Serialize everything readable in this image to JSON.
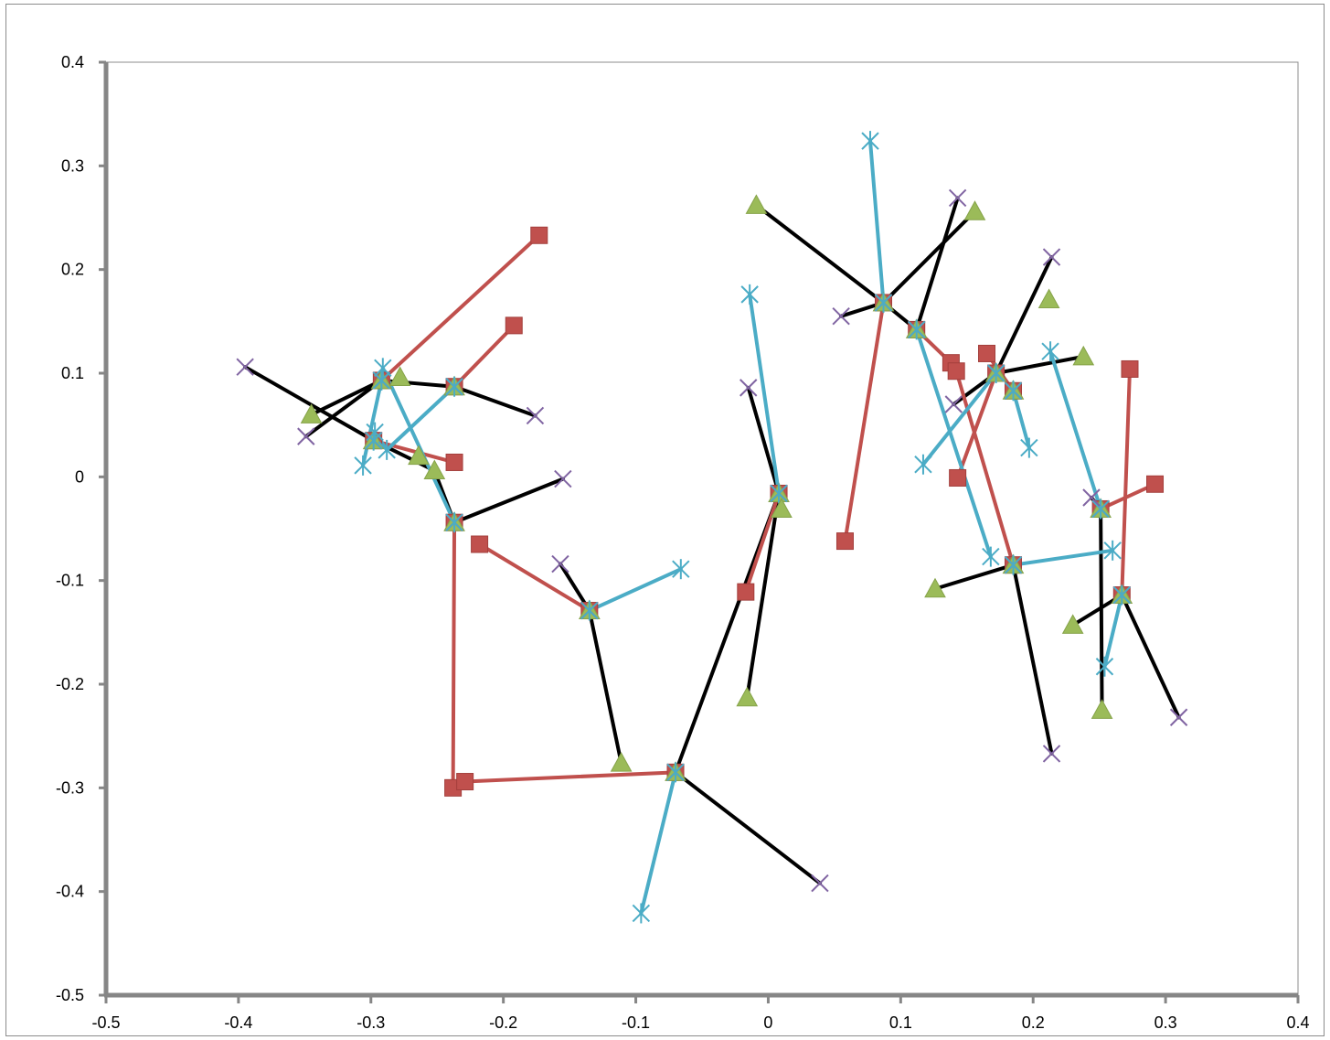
{
  "chart_data": {
    "type": "scatter",
    "title": "",
    "xlabel": "",
    "ylabel": "",
    "xlim": [
      -0.5,
      0.4
    ],
    "ylim": [
      -0.5,
      0.4
    ],
    "xticks": [
      -0.5,
      -0.4,
      -0.3,
      -0.2,
      -0.1,
      0,
      0.1,
      0.2,
      0.3,
      0.4
    ],
    "yticks": [
      0.4,
      0.3,
      0.2,
      0.1,
      0,
      -0.1,
      -0.2,
      -0.3,
      -0.4,
      -0.5
    ],
    "xtick_labels": [
      "-0.5",
      "-0.4",
      "-0.3",
      "-0.2",
      "-0.1",
      "0",
      "0.1",
      "0.2",
      "0.3",
      "0.4"
    ],
    "ytick_labels": [
      "0.4",
      "0.3",
      "0.2",
      "0.1",
      "0",
      "-0.1",
      "-0.2",
      "-0.3",
      "-0.4",
      "-0.5"
    ],
    "grid": false,
    "legend": "none",
    "colors": {
      "axis": "#868686",
      "black_edges": "#000000",
      "red_edges": "#c0504d",
      "blue_edges": "#4bacc6",
      "square_marker": "#c0504d",
      "triangle_marker": "#9bbb59",
      "x_marker": "#8064a2",
      "star_marker": "#4bacc6"
    },
    "hub_points": [
      {
        "x": -0.292,
        "y": 0.093
      },
      {
        "x": -0.237,
        "y": 0.087
      },
      {
        "x": -0.298,
        "y": 0.035
      },
      {
        "x": -0.237,
        "y": -0.044
      },
      {
        "x": -0.135,
        "y": -0.129
      },
      {
        "x": -0.07,
        "y": -0.285
      },
      {
        "x": 0.008,
        "y": -0.016
      },
      {
        "x": 0.087,
        "y": 0.168
      },
      {
        "x": 0.112,
        "y": 0.142
      },
      {
        "x": 0.172,
        "y": 0.1
      },
      {
        "x": 0.185,
        "y": 0.083
      },
      {
        "x": 0.185,
        "y": -0.085
      },
      {
        "x": 0.251,
        "y": -0.031
      },
      {
        "x": 0.267,
        "y": -0.114
      }
    ],
    "series": [
      {
        "marker": "square",
        "color": "#c0504d",
        "points": [
          {
            "x": -0.173,
            "y": 0.233
          },
          {
            "x": -0.192,
            "y": 0.146
          },
          {
            "x": -0.237,
            "y": 0.014
          },
          {
            "x": -0.218,
            "y": -0.065
          },
          {
            "x": -0.238,
            "y": -0.3
          },
          {
            "x": -0.229,
            "y": -0.294
          },
          {
            "x": -0.017,
            "y": -0.111
          },
          {
            "x": 0.058,
            "y": -0.062
          },
          {
            "x": 0.138,
            "y": 0.11
          },
          {
            "x": 0.142,
            "y": 0.102
          },
          {
            "x": 0.143,
            "y": -0.001
          },
          {
            "x": 0.165,
            "y": 0.119
          },
          {
            "x": 0.273,
            "y": 0.104
          },
          {
            "x": 0.292,
            "y": -0.007
          }
        ]
      },
      {
        "marker": "triangle",
        "color": "#9bbb59",
        "points": [
          {
            "x": -0.345,
            "y": 0.06
          },
          {
            "x": -0.278,
            "y": 0.096
          },
          {
            "x": -0.264,
            "y": 0.02
          },
          {
            "x": -0.252,
            "y": 0.006
          },
          {
            "x": -0.111,
            "y": -0.276
          },
          {
            "x": -0.016,
            "y": -0.213
          },
          {
            "x": -0.009,
            "y": 0.262
          },
          {
            "x": 0.01,
            "y": -0.031
          },
          {
            "x": 0.126,
            "y": -0.108
          },
          {
            "x": 0.156,
            "y": 0.256
          },
          {
            "x": 0.212,
            "y": 0.171
          },
          {
            "x": 0.23,
            "y": -0.143
          },
          {
            "x": 0.238,
            "y": 0.116
          },
          {
            "x": 0.252,
            "y": -0.225
          }
        ]
      },
      {
        "marker": "x",
        "color": "#8064a2",
        "points": [
          {
            "x": -0.395,
            "y": 0.106
          },
          {
            "x": -0.349,
            "y": 0.039
          },
          {
            "x": -0.176,
            "y": 0.059
          },
          {
            "x": -0.155,
            "y": -0.002
          },
          {
            "x": -0.157,
            "y": -0.084
          },
          {
            "x": -0.015,
            "y": 0.086
          },
          {
            "x": 0.039,
            "y": -0.392
          },
          {
            "x": 0.055,
            "y": 0.155
          },
          {
            "x": 0.14,
            "y": 0.07
          },
          {
            "x": 0.143,
            "y": 0.269
          },
          {
            "x": 0.214,
            "y": 0.212
          },
          {
            "x": 0.214,
            "y": -0.267
          },
          {
            "x": 0.244,
            "y": -0.02
          },
          {
            "x": 0.31,
            "y": -0.232
          }
        ]
      },
      {
        "marker": "star",
        "color": "#4bacc6",
        "points": [
          {
            "x": -0.306,
            "y": 0.011
          },
          {
            "x": -0.291,
            "y": 0.105
          },
          {
            "x": -0.288,
            "y": 0.026
          },
          {
            "x": -0.297,
            "y": 0.043
          },
          {
            "x": -0.066,
            "y": -0.089
          },
          {
            "x": -0.096,
            "y": -0.421
          },
          {
            "x": -0.014,
            "y": 0.176
          },
          {
            "x": 0.077,
            "y": 0.324
          },
          {
            "x": 0.117,
            "y": 0.012
          },
          {
            "x": 0.168,
            "y": -0.077
          },
          {
            "x": 0.197,
            "y": 0.028
          },
          {
            "x": 0.213,
            "y": 0.121
          },
          {
            "x": 0.254,
            "y": -0.183
          },
          {
            "x": 0.26,
            "y": -0.071
          }
        ]
      }
    ],
    "edges": {
      "black": [
        [
          [
            -0.395,
            0.106
          ],
          [
            -0.298,
            0.035
          ]
        ],
        [
          [
            -0.298,
            0.035
          ],
          [
            -0.252,
            0.006
          ]
        ],
        [
          [
            -0.252,
            0.006
          ],
          [
            -0.237,
            -0.044
          ]
        ],
        [
          [
            -0.349,
            0.039
          ],
          [
            -0.292,
            0.093
          ]
        ],
        [
          [
            -0.345,
            0.06
          ],
          [
            -0.292,
            0.093
          ]
        ],
        [
          [
            -0.292,
            0.093
          ],
          [
            -0.237,
            0.087
          ]
        ],
        [
          [
            -0.237,
            0.087
          ],
          [
            -0.176,
            0.059
          ]
        ],
        [
          [
            -0.237,
            -0.044
          ],
          [
            -0.155,
            -0.002
          ]
        ],
        [
          [
            -0.157,
            -0.084
          ],
          [
            -0.135,
            -0.129
          ]
        ],
        [
          [
            -0.135,
            -0.129
          ],
          [
            -0.111,
            -0.276
          ]
        ],
        [
          [
            -0.07,
            -0.285
          ],
          [
            0.039,
            -0.392
          ]
        ],
        [
          [
            -0.07,
            -0.285
          ],
          [
            0.008,
            -0.016
          ]
        ],
        [
          [
            -0.015,
            0.086
          ],
          [
            0.008,
            -0.016
          ]
        ],
        [
          [
            0.008,
            -0.016
          ],
          [
            -0.016,
            -0.213
          ]
        ],
        [
          [
            -0.009,
            0.262
          ],
          [
            0.087,
            0.168
          ]
        ],
        [
          [
            0.055,
            0.155
          ],
          [
            0.087,
            0.168
          ]
        ],
        [
          [
            0.087,
            0.168
          ],
          [
            0.156,
            0.256
          ]
        ],
        [
          [
            0.087,
            0.168
          ],
          [
            0.112,
            0.142
          ]
        ],
        [
          [
            0.112,
            0.142
          ],
          [
            0.143,
            0.269
          ]
        ],
        [
          [
            0.14,
            0.07
          ],
          [
            0.172,
            0.1
          ]
        ],
        [
          [
            0.172,
            0.1
          ],
          [
            0.214,
            0.212
          ]
        ],
        [
          [
            0.172,
            0.1
          ],
          [
            0.238,
            0.116
          ]
        ],
        [
          [
            0.126,
            -0.108
          ],
          [
            0.185,
            -0.085
          ]
        ],
        [
          [
            0.185,
            -0.085
          ],
          [
            0.214,
            -0.267
          ]
        ],
        [
          [
            0.244,
            -0.02
          ],
          [
            0.251,
            -0.031
          ]
        ],
        [
          [
            0.251,
            -0.031
          ],
          [
            0.252,
            -0.225
          ]
        ],
        [
          [
            0.23,
            -0.143
          ],
          [
            0.267,
            -0.114
          ]
        ],
        [
          [
            0.267,
            -0.114
          ],
          [
            0.31,
            -0.232
          ]
        ]
      ],
      "red": [
        [
          [
            -0.173,
            0.233
          ],
          [
            -0.292,
            0.093
          ]
        ],
        [
          [
            -0.192,
            0.146
          ],
          [
            -0.237,
            0.087
          ]
        ],
        [
          [
            -0.298,
            0.035
          ],
          [
            -0.237,
            0.014
          ]
        ],
        [
          [
            -0.237,
            -0.044
          ],
          [
            -0.238,
            -0.3
          ]
        ],
        [
          [
            -0.229,
            -0.294
          ],
          [
            -0.07,
            -0.285
          ]
        ],
        [
          [
            -0.218,
            -0.065
          ],
          [
            -0.135,
            -0.129
          ]
        ],
        [
          [
            0.008,
            -0.016
          ],
          [
            -0.017,
            -0.111
          ]
        ],
        [
          [
            0.058,
            -0.062
          ],
          [
            0.087,
            0.168
          ]
        ],
        [
          [
            0.112,
            0.142
          ],
          [
            0.138,
            0.11
          ]
        ],
        [
          [
            0.142,
            0.102
          ],
          [
            0.185,
            -0.085
          ]
        ],
        [
          [
            0.143,
            -0.001
          ],
          [
            0.172,
            0.1
          ]
        ],
        [
          [
            0.165,
            0.119
          ],
          [
            0.185,
            0.083
          ]
        ],
        [
          [
            0.251,
            -0.031
          ],
          [
            0.292,
            -0.007
          ]
        ],
        [
          [
            0.273,
            0.104
          ],
          [
            0.267,
            -0.114
          ]
        ]
      ],
      "blue": [
        [
          [
            -0.306,
            0.011
          ],
          [
            -0.292,
            0.093
          ]
        ],
        [
          [
            -0.291,
            0.105
          ],
          [
            -0.237,
            -0.044
          ]
        ],
        [
          [
            -0.297,
            0.043
          ],
          [
            -0.288,
            0.026
          ]
        ],
        [
          [
            -0.288,
            0.026
          ],
          [
            -0.237,
            0.087
          ]
        ],
        [
          [
            -0.066,
            -0.089
          ],
          [
            -0.135,
            -0.129
          ]
        ],
        [
          [
            -0.096,
            -0.421
          ],
          [
            -0.07,
            -0.285
          ]
        ],
        [
          [
            -0.014,
            0.176
          ],
          [
            0.008,
            -0.016
          ]
        ],
        [
          [
            0.077,
            0.324
          ],
          [
            0.087,
            0.168
          ]
        ],
        [
          [
            0.112,
            0.142
          ],
          [
            0.168,
            -0.077
          ]
        ],
        [
          [
            0.117,
            0.012
          ],
          [
            0.172,
            0.1
          ]
        ],
        [
          [
            0.185,
            0.083
          ],
          [
            0.197,
            0.028
          ]
        ],
        [
          [
            0.213,
            0.121
          ],
          [
            0.251,
            -0.031
          ]
        ],
        [
          [
            0.185,
            -0.085
          ],
          [
            0.26,
            -0.071
          ]
        ],
        [
          [
            0.254,
            -0.183
          ],
          [
            0.267,
            -0.114
          ]
        ]
      ]
    }
  }
}
